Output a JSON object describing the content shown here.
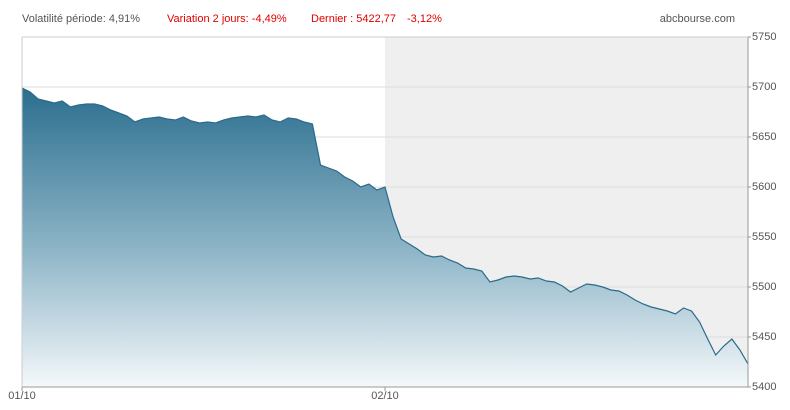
{
  "chart_data": {
    "type": "area",
    "annotations": [
      "Volatilité période: 4,91%",
      "Variation 2 jours: -4,49%",
      "Dernier : 5422,77",
      "-3,12%"
    ],
    "source": "abcbourse.com",
    "categories": [
      "01/10",
      null,
      null,
      null,
      null,
      null,
      null,
      null,
      null,
      null,
      null,
      null,
      null,
      null,
      null,
      null,
      null,
      null,
      null,
      null,
      null,
      null,
      null,
      null,
      null,
      null,
      null,
      null,
      null,
      null,
      null,
      null,
      null,
      null,
      null,
      null,
      null,
      null,
      null,
      null,
      null,
      null,
      null,
      null,
      null,
      "02/10",
      null,
      null,
      null,
      null,
      null,
      null,
      null,
      null,
      null,
      null,
      null,
      null,
      null,
      null,
      null,
      null,
      null,
      null,
      null,
      null,
      null,
      null,
      null,
      null,
      null,
      null,
      null,
      null,
      null,
      null,
      null,
      null,
      null,
      null,
      null,
      null,
      null,
      null,
      null,
      null,
      null,
      null,
      null,
      null,
      null
    ],
    "values": [
      5699,
      5695,
      5688,
      5686,
      5684,
      5686,
      5680,
      5682,
      5683,
      5683,
      5681,
      5677,
      5674,
      5671,
      5665,
      5668,
      5669,
      5670,
      5668,
      5667,
      5670,
      5666,
      5664,
      5665,
      5664,
      5667,
      5669,
      5670,
      5671,
      5670,
      5672,
      5667,
      5665,
      5669,
      5668,
      5665,
      5663,
      5622,
      5619,
      5616,
      5610,
      5606,
      5600,
      5603,
      5597,
      5600,
      5570,
      5548,
      5543,
      5538,
      5532,
      5530,
      5531,
      5527,
      5524,
      5519,
      5518,
      5516,
      5505,
      5507,
      5510,
      5511,
      5510,
      5508,
      5509,
      5506,
      5505,
      5501,
      5495,
      5499,
      5503,
      5502,
      5500,
      5497,
      5496,
      5492,
      5487,
      5483,
      5480,
      5478,
      5476,
      5473,
      5479,
      5476,
      5465,
      5448,
      5432,
      5441,
      5448,
      5437,
      5423
    ],
    "color": "#2a6a8a",
    "ylim": [
      5400,
      5750
    ],
    "yticks": [
      5400,
      5450,
      5500,
      5550,
      5600,
      5650,
      5700,
      5750
    ],
    "grid": true
  }
}
